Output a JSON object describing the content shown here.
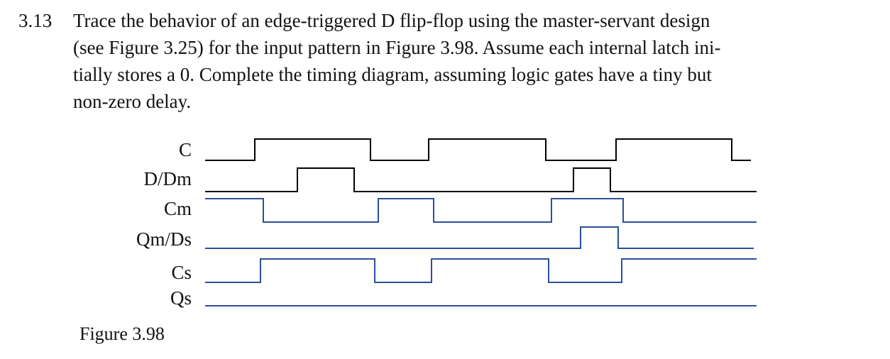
{
  "problem": {
    "number": "3.13",
    "lines": [
      "Trace the behavior of an edge-triggered D flip-flop using the master-servant design",
      "(see Figure 3.25) for the input pattern in Figure 3.98. Assume each internal latch ini-",
      "tially stores a 0. Complete the timing diagram, assuming logic gates have a tiny but",
      "non-zero delay."
    ]
  },
  "figure": {
    "caption": "Figure 3.98",
    "signals": [
      {
        "label": "C",
        "color": "#000000"
      },
      {
        "label": "D/Dm",
        "color": "#000000"
      },
      {
        "label": "Cm",
        "color": "#2b4f9a"
      },
      {
        "label": "Qm/Ds",
        "color": "#2b4f9a"
      },
      {
        "label": "Cs",
        "color": "#2b4f9a"
      },
      {
        "label": "Qs",
        "color": "#2b4f9a"
      }
    ]
  }
}
